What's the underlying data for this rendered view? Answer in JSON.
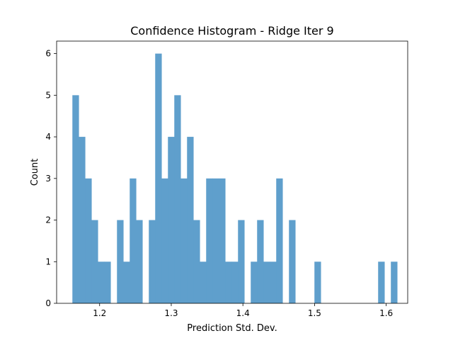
{
  "chart_data": {
    "type": "histogram",
    "title": "Confidence Histogram - Ridge Iter 9",
    "xlabel": "Prediction Std. Dev.",
    "ylabel": "Count",
    "xlim": [
      1.14,
      1.63
    ],
    "ylim": [
      0,
      6.3
    ],
    "xticks": [
      "1.2",
      "1.3",
      "1.4",
      "1.5",
      "1.6"
    ],
    "xtick_values": [
      1.2,
      1.3,
      1.4,
      1.5,
      1.6
    ],
    "yticks": [
      "0",
      "1",
      "2",
      "3",
      "4",
      "5",
      "6"
    ],
    "ytick_values": [
      0,
      1,
      2,
      3,
      4,
      5,
      6
    ],
    "bin_start": 1.162,
    "bin_width": 0.00889,
    "counts": [
      5,
      4,
      3,
      2,
      1,
      1,
      0,
      2,
      1,
      3,
      2,
      0,
      2,
      6,
      3,
      4,
      5,
      3,
      4,
      2,
      1,
      3,
      3,
      3,
      1,
      1,
      2,
      0,
      1,
      2,
      1,
      1,
      3,
      0,
      2,
      0,
      0,
      0,
      1,
      0,
      0,
      0,
      0,
      0,
      0,
      0,
      0,
      0,
      1,
      0,
      1
    ],
    "bar_color": "#5f9fcc",
    "grid": false
  }
}
